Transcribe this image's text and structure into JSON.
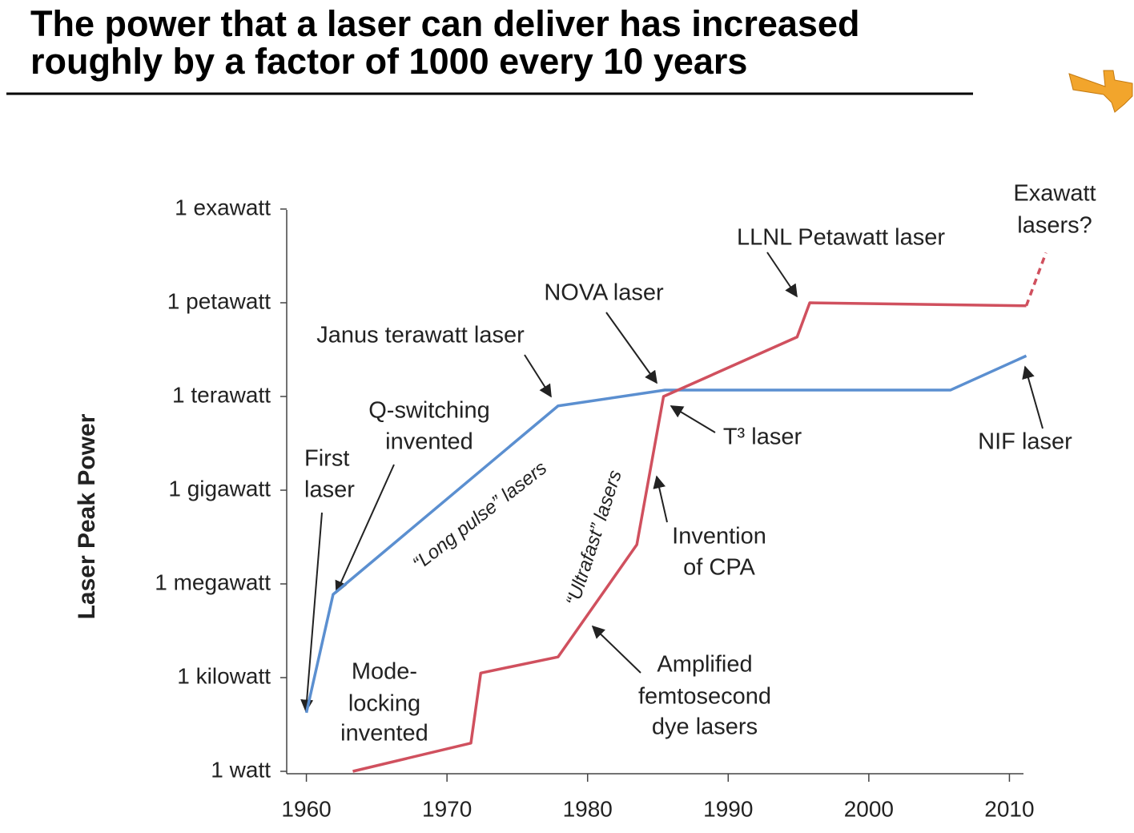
{
  "chart_data": {
    "type": "line",
    "title": [
      "The power that a laser can deliver has increased",
      "roughly by a factor of 1000 every 10 years"
    ],
    "ylabel": "Laser Peak Power",
    "log_y": true,
    "xlim": [
      1958.6,
      2011
    ],
    "xticks": [
      1960,
      1970,
      1980,
      1990,
      2000,
      2010
    ],
    "ylim": [
      1,
      1e+18
    ],
    "yticks": [
      {
        "value": 1,
        "label": "1 watt"
      },
      {
        "value": 1000,
        "label": "1 kilowatt"
      },
      {
        "value": 1000000,
        "label": "1 megawatt"
      },
      {
        "value": 1000000000,
        "label": "1 gigawatt"
      },
      {
        "value": 1000000000000,
        "label": "1 terawatt"
      },
      {
        "value": 1000000000000000,
        "label": "1 petawatt"
      },
      {
        "value": 1000000000000000000,
        "label": "1 exawatt"
      }
    ],
    "series": [
      {
        "name": "“Long pulse” lasers",
        "color": "#5b8fd0",
        "x": [
          1960,
          1961.9,
          1977.9,
          1985.5,
          2005.8,
          2011.2
        ],
        "values": [
          75,
          460000,
          500000000000,
          1600000000000,
          1600000000000,
          20000000000000
        ]
      },
      {
        "name": "“Ultrafast” lasers",
        "color": "#d0505e",
        "x": [
          1963.3,
          1971.7,
          1972.4,
          1977.9,
          1983.5,
          1985.4,
          1994.9,
          1995.8,
          2011.2
        ],
        "values": [
          1,
          8,
          1400,
          4600,
          18000000,
          1000000000000,
          80000000000000,
          1000000000000000,
          800000000000000
        ]
      },
      {
        "color": "#d0505e",
        "dashed": true,
        "x": [
          2011.2,
          2012.6
        ],
        "values": [
          800000000000000,
          40000000000000000
        ]
      }
    ],
    "annotations": [
      [
        "Exawatt",
        "lasers?"
      ],
      [
        "LLNL Petawatt laser"
      ],
      [
        "NOVA laser"
      ],
      [
        "Janus terawatt laser"
      ],
      [
        "Q-switching",
        "invented"
      ],
      [
        "First",
        "laser"
      ],
      [
        "T³ laser"
      ],
      [
        "NIF laser"
      ],
      [
        "Invention",
        "of CPA"
      ],
      [
        "Mode-",
        "locking",
        "invented"
      ],
      [
        "Amplified",
        "femtosecond",
        "dye lasers"
      ]
    ]
  }
}
